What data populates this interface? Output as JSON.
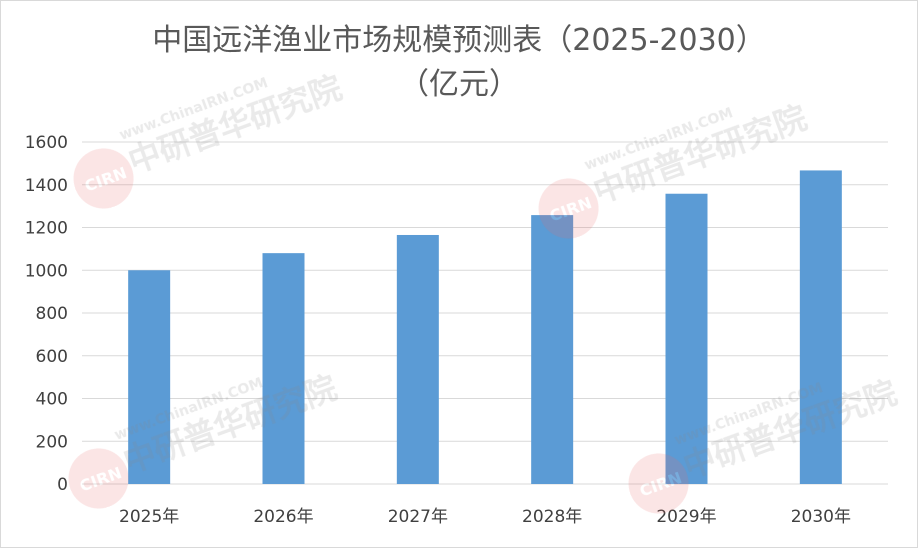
{
  "chart_data": {
    "type": "bar",
    "title_line1": "中国远洋渔业市场规模预测表（2025-2030）",
    "title_line2": "（亿元）",
    "categories": [
      "2025年",
      "2026年",
      "2027年",
      "2028年",
      "2029年",
      "2030年"
    ],
    "values": [
      1000,
      1080,
      1165,
      1258,
      1358,
      1467
    ],
    "ylim": [
      0,
      1600
    ],
    "yticks": [
      0,
      200,
      400,
      600,
      800,
      1000,
      1200,
      1400,
      1600
    ],
    "grid": true,
    "bar_color": "#5b9bd5",
    "grid_color": "#d9d9d9"
  },
  "watermark": {
    "text": "中研普华研究院",
    "url_text": "www.ChinaIRN.COM",
    "badge": "CIRN"
  }
}
